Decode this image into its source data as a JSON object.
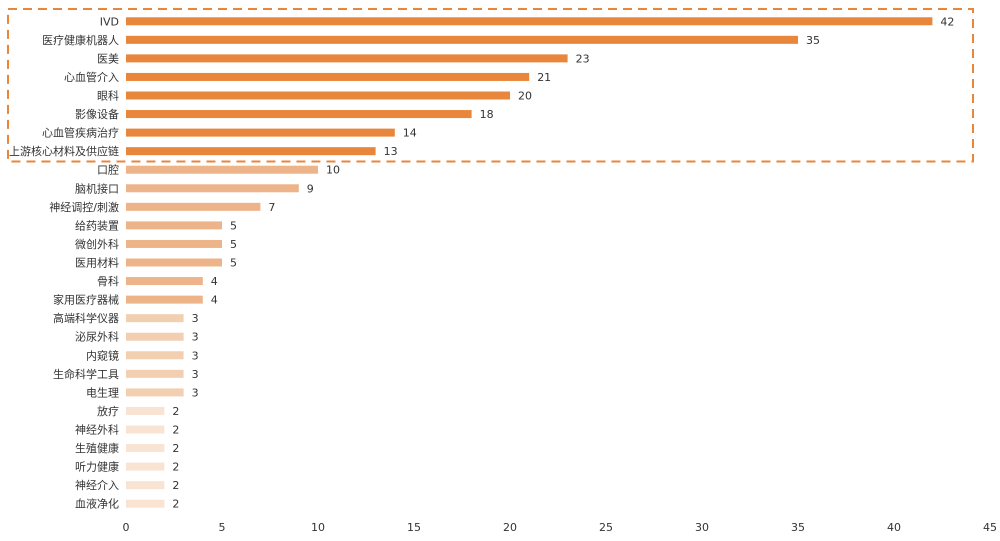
{
  "chart_data": {
    "type": "bar",
    "orientation": "horizontal",
    "categories": [
      "IVD",
      "医疗健康机器人",
      "医美",
      "心血管介入",
      "眼科",
      "影像设备",
      "心血管疾病治疗",
      "上游核心材料及供应链",
      "口腔",
      "脑机接口",
      "神经调控/刺激",
      "给药装置",
      "微创外科",
      "医用材料",
      "骨科",
      "家用医疗器械",
      "高端科学仪器",
      "泌尿外科",
      "内窥镜",
      "生命科学工具",
      "电生理",
      "放疗",
      "神经外科",
      "生殖健康",
      "听力健康",
      "神经介入",
      "血液净化"
    ],
    "values": [
      42,
      35,
      23,
      21,
      20,
      18,
      14,
      13,
      10,
      9,
      7,
      5,
      5,
      5,
      4,
      4,
      3,
      3,
      3,
      3,
      3,
      2,
      2,
      2,
      2,
      2,
      2
    ],
    "xlim": [
      0,
      45
    ],
    "xticks": [
      0,
      5,
      10,
      15,
      20,
      25,
      30,
      35,
      40,
      45
    ],
    "title": "",
    "xlabel": "",
    "ylabel": "",
    "grid": false,
    "colors": {
      "top": "#E8873B",
      "high": "#EDB489",
      "mid": "#F3CFB1",
      "low": "#F9E4D3"
    },
    "highlight_box": {
      "count": 8,
      "style": "dashed",
      "color": "#E8873B"
    }
  }
}
